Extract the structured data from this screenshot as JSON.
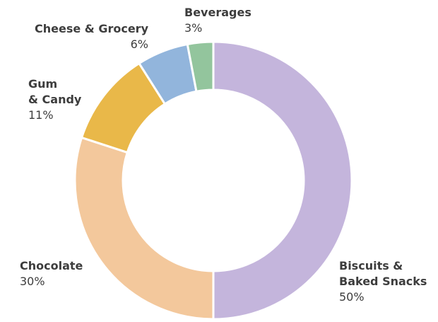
{
  "chart_data": {
    "type": "pie",
    "donut": true,
    "categories": [
      "Biscuits & Baked Snacks",
      "Chocolate",
      "Gum & Candy",
      "Cheese & Grocery",
      "Beverages"
    ],
    "values": [
      50,
      30,
      11,
      6,
      3
    ],
    "value_labels": [
      "50%",
      "30%",
      "11%",
      "6%",
      "3%"
    ],
    "colors": [
      "#c4b5dc",
      "#f3c89c",
      "#e9b849",
      "#92b5dc",
      "#93c59d"
    ],
    "title": "",
    "legend": "none"
  },
  "labels": {
    "beverages": {
      "name": "Beverages",
      "pct": "3%"
    },
    "cheese": {
      "name": "Cheese & Grocery",
      "pct": "6%"
    },
    "gum": {
      "line1": "Gum",
      "line2": "& Candy",
      "pct": "11%"
    },
    "chocolate": {
      "name": "Chocolate",
      "pct": "30%"
    },
    "biscuits": {
      "line1": "Biscuits &",
      "line2": "Baked Snacks",
      "pct": "50%"
    }
  }
}
